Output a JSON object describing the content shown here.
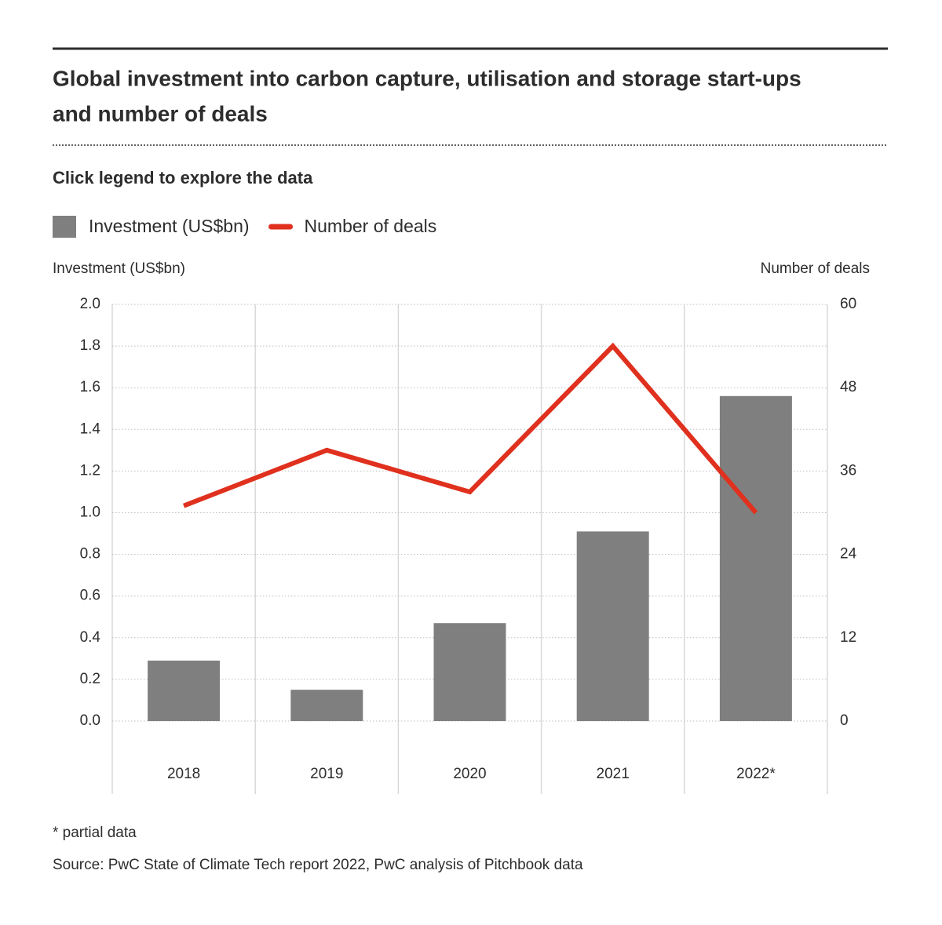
{
  "chart_data": {
    "type": "bar-line",
    "title": "Global investment into carbon capture, utilisation and storage start-ups",
    "title_line2": "and number of deals",
    "subtitle": "Click legend to explore the data",
    "categories": [
      "2018",
      "2019",
      "2020",
      "2021",
      "2022*"
    ],
    "series": [
      {
        "name": "Investment (US$bn)",
        "type": "bar",
        "color": "#7f7f7f",
        "values": [
          0.29,
          0.15,
          0.47,
          0.91,
          1.56
        ]
      },
      {
        "name": "Number of deals",
        "type": "line",
        "axis": "y2",
        "color": "#e0301e",
        "values": [
          31,
          39,
          33,
          54,
          30
        ]
      }
    ],
    "ylabel": "Investment (US$bn)",
    "y2label": "Number of deals",
    "ylim": [
      0,
      2
    ],
    "yticks": [
      {
        "value": 0,
        "label": "0.0"
      },
      0.2,
      0.4,
      0.6,
      0.8,
      {
        "value": 1,
        "label": "1.0"
      },
      1.2,
      1.4,
      1.6,
      1.8,
      {
        "value": 2,
        "label": "2.0"
      }
    ],
    "y2lim": [
      0,
      60
    ],
    "y2ticks": [
      0,
      12,
      24,
      36,
      48,
      60
    ],
    "grid": true,
    "footnote": "* partial data",
    "source": "Source: PwC State of Climate Tech report 2022, PwC analysis of Pitchbook data"
  }
}
